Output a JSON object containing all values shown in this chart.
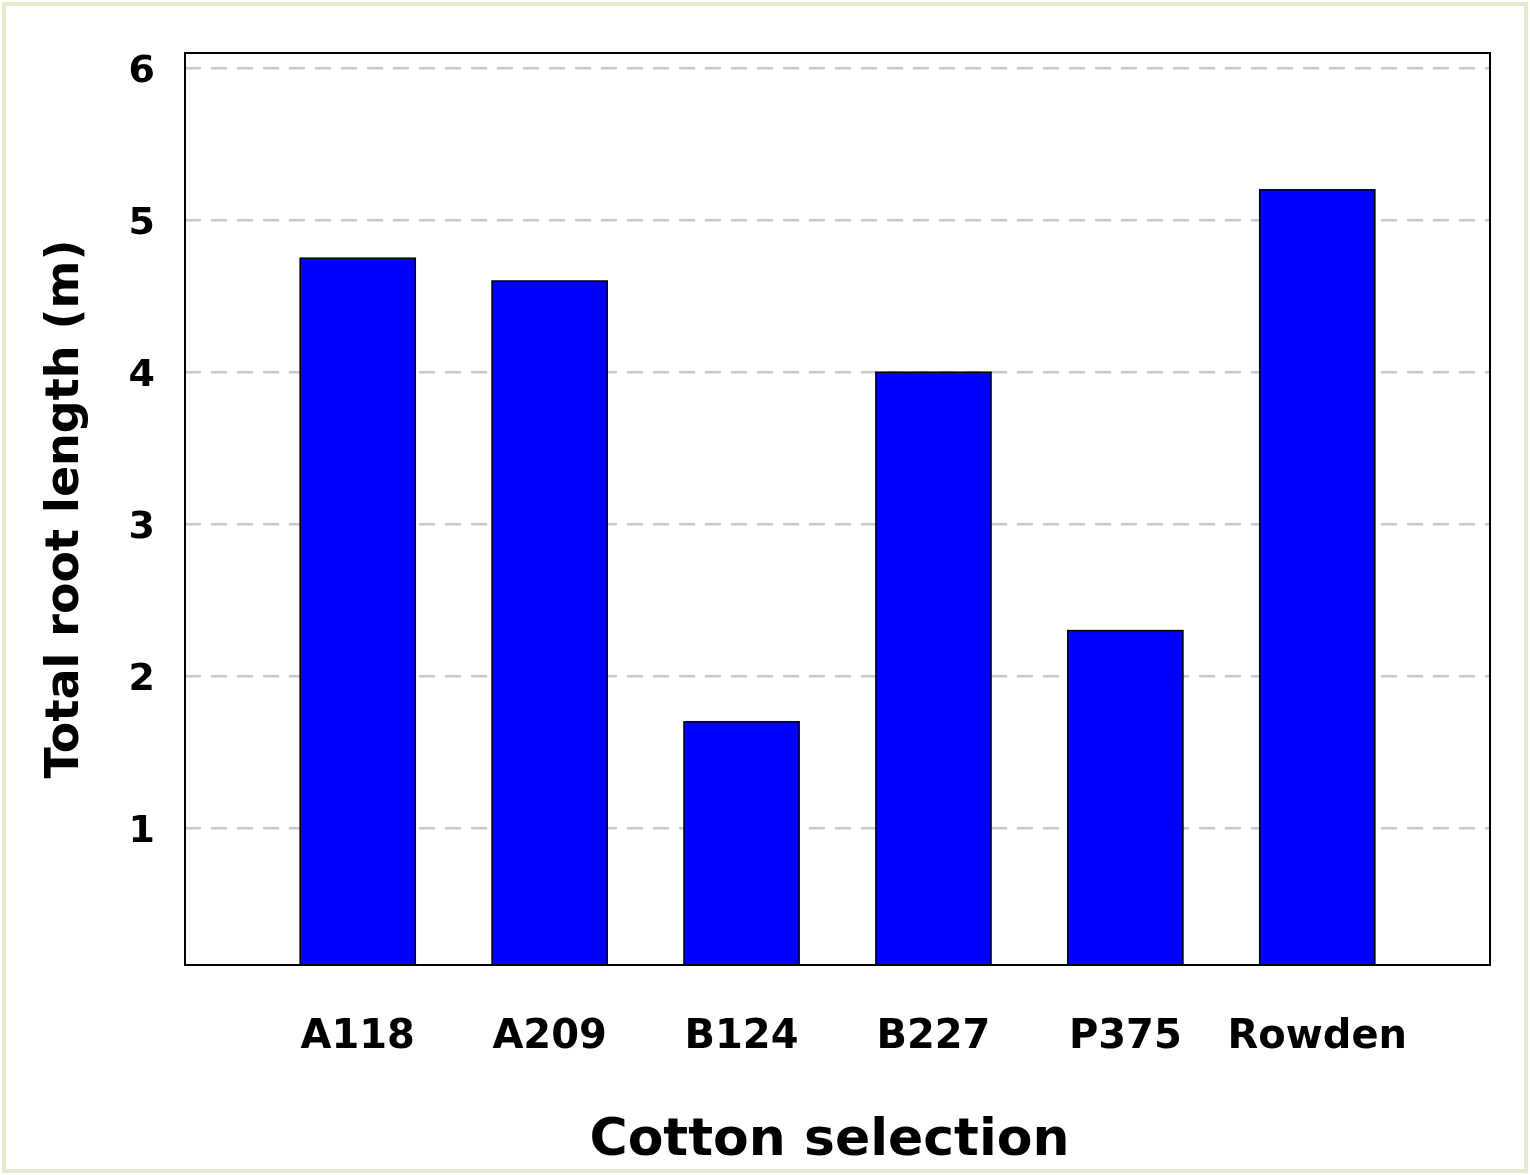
{
  "chart_data": {
    "type": "bar",
    "xlabel": "Cotton selection",
    "ylabel": "Total root length (m)",
    "categories": [
      "A118",
      "A209",
      "B124",
      "B227",
      "P375",
      "Rowden"
    ],
    "values": [
      4.75,
      4.6,
      1.7,
      4.0,
      2.3,
      5.2
    ],
    "color": "#0000ff",
    "ylim": [
      0.1,
      6.1
    ],
    "yticks": [
      1,
      2,
      3,
      4,
      5,
      6
    ],
    "grid": "y"
  }
}
